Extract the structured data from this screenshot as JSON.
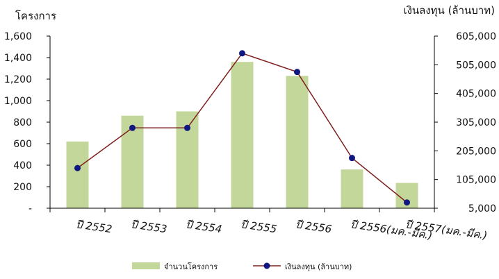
{
  "chart_data": {
    "type": "bar",
    "title": "",
    "categories": [
      "ปี 2552",
      "ปี 2553",
      "ปี 2554",
      "ปี 2555",
      "ปี 2556",
      "ปี 2556(มค.-มีค.)",
      "ปี 2557(มค.-มีค.)"
    ],
    "y_left": {
      "label": "โครงการ",
      "range": [
        0,
        1600
      ],
      "ticks": [
        0,
        200,
        400,
        600,
        800,
        1000,
        1200,
        1400,
        1600
      ],
      "tick_labels": [
        "-",
        "200",
        "400",
        "600",
        "800",
        "1,000",
        "1,200",
        "1,400",
        "1,600"
      ]
    },
    "y_right": {
      "label": "เงินลงทุน (ล้านบาท)",
      "range": [
        5000,
        605000
      ],
      "ticks": [
        5000,
        105000,
        205000,
        305000,
        405000,
        505000,
        605000
      ],
      "tick_labels": [
        "5,000",
        "105,000",
        "205,000",
        "305,000",
        "405,000",
        "505,000",
        "605,000"
      ]
    },
    "series": [
      {
        "name": "จำนวนโครงการ",
        "type": "bar",
        "axis": "left",
        "color": "#c4d79b",
        "values": [
          620,
          860,
          900,
          1360,
          1230,
          360,
          235
        ]
      },
      {
        "name": "เงินลงทุน (ล้านบาท)",
        "type": "line",
        "axis": "right",
        "color": "#7f1f1f",
        "marker_color": "#101780",
        "values": [
          145000,
          285000,
          285000,
          545000,
          480000,
          180000,
          25000
        ]
      }
    ],
    "legend_position": "bottom",
    "grid": false
  }
}
